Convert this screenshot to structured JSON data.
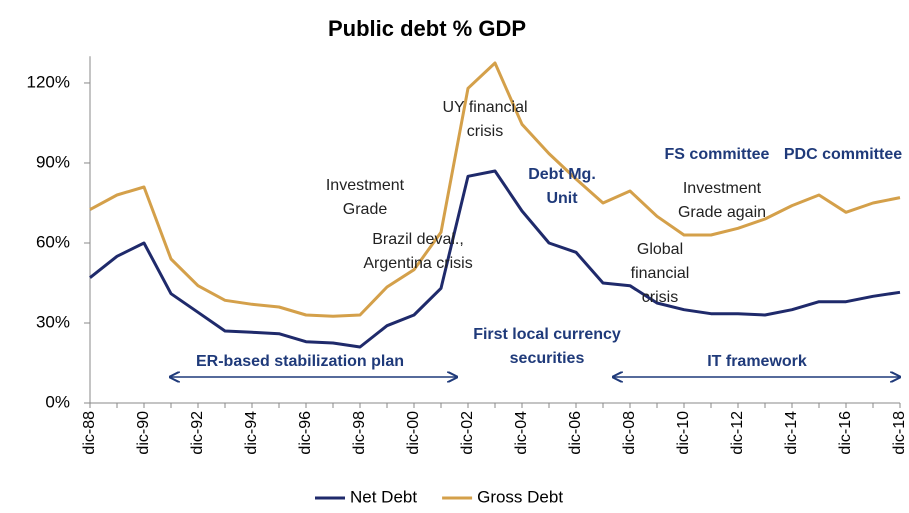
{
  "chart_data": {
    "type": "line",
    "title": "Public debt % GDP",
    "categories": [
      "dic-88",
      null,
      "dic-90",
      null,
      "dic-92",
      null,
      "dic-94",
      null,
      "dic-96",
      null,
      "dic-98",
      null,
      "dic-00",
      null,
      "dic-02",
      null,
      "dic-04",
      null,
      "dic-06",
      null,
      "dic-08",
      null,
      "dic-10",
      null,
      "dic-12",
      null,
      "dic-14",
      null,
      "dic-16",
      null,
      "dic-18"
    ],
    "series": [
      {
        "name": "Net Debt",
        "color": "#1f2a6b",
        "values": [
          47,
          55,
          60,
          41,
          34,
          27,
          26.5,
          26,
          23,
          22.5,
          21,
          29,
          33,
          43,
          85,
          87,
          72,
          60,
          56.5,
          45,
          44,
          37.5,
          35,
          33.5,
          33.5,
          33,
          35,
          38,
          38,
          40,
          41.5
        ]
      },
      {
        "name": "Gross Debt",
        "color": "#d4a04a",
        "values": [
          72.5,
          78,
          81,
          54,
          44,
          38.5,
          37,
          36,
          33,
          32.5,
          33,
          43.5,
          50,
          64,
          118,
          127.5,
          104.5,
          93.5,
          84,
          75,
          79.5,
          70,
          63,
          63,
          65.5,
          69,
          74,
          78,
          71.5,
          75,
          77
        ]
      }
    ],
    "ylim": [
      0,
      130
    ],
    "yticks": [
      {
        "value": 0,
        "label": "0%"
      },
      {
        "value": 30,
        "label": "30%"
      },
      {
        "value": 60,
        "label": "60%"
      },
      {
        "value": 90,
        "label": "90%"
      },
      {
        "value": 120,
        "label": "120%"
      }
    ],
    "annotations": [
      {
        "lines": [
          "UY financial",
          "crisis"
        ],
        "color": "#222222",
        "bold": false
      },
      {
        "lines": [
          "Investment",
          "Grade"
        ],
        "color": "#222222",
        "bold": false
      },
      {
        "lines": [
          "Brazil deval.,",
          "Argentina crisis"
        ],
        "color": "#222222",
        "bold": false
      },
      {
        "lines": [
          "Debt Mg.",
          "Unit"
        ],
        "color": "#1f3a7a",
        "bold": true
      },
      {
        "lines": [
          "FS committee"
        ],
        "color": "#1f3a7a",
        "bold": true
      },
      {
        "lines": [
          "PDC committee"
        ],
        "color": "#1f3a7a",
        "bold": true
      },
      {
        "lines": [
          "Investment",
          "Grade again"
        ],
        "color": "#222222",
        "bold": false
      },
      {
        "lines": [
          "Global",
          "financial",
          "crisis"
        ],
        "color": "#222222",
        "bold": false
      },
      {
        "lines": [
          "ER-based stabilization plan"
        ],
        "color": "#1f3a7a",
        "bold": true
      },
      {
        "lines": [
          "First local currency",
          "securities"
        ],
        "color": "#1f3a7a",
        "bold": true
      },
      {
        "lines": [
          "IT framework"
        ],
        "color": "#1f3a7a",
        "bold": true
      }
    ]
  }
}
